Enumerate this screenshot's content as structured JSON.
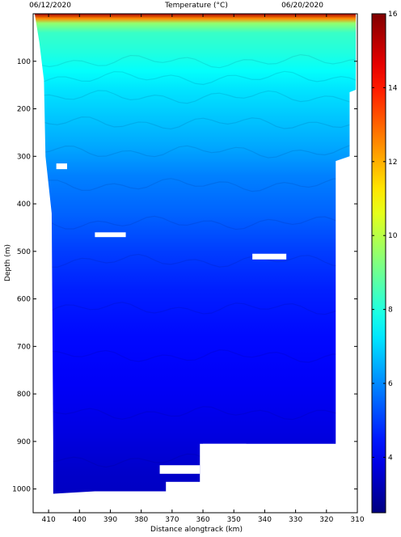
{
  "chart_data": {
    "type": "heatmap",
    "title": "Temperature (°C)",
    "top_left_date": "06/12/2020",
    "top_right_date": "06/20/2020",
    "xlabel": "Distance alongtrack (km)",
    "ylabel": "Depth (m)",
    "xlim": [
      415,
      310
    ],
    "ylim": [
      1050,
      0
    ],
    "x_ticks": [
      410,
      400,
      390,
      380,
      370,
      360,
      350,
      340,
      330,
      320,
      310
    ],
    "y_ticks": [
      100,
      200,
      300,
      400,
      500,
      600,
      700,
      800,
      900,
      1000
    ],
    "colorbar": {
      "range": [
        2.5,
        16
      ],
      "ticks": [
        4,
        6,
        8,
        10,
        12,
        14,
        16
      ]
    },
    "profile": [
      {
        "depth": 0,
        "temp": 15.5
      },
      {
        "depth": 10,
        "temp": 12.5
      },
      {
        "depth": 20,
        "temp": 9.5
      },
      {
        "depth": 40,
        "temp": 8.3
      },
      {
        "depth": 80,
        "temp": 8.0
      },
      {
        "depth": 120,
        "temp": 7.6
      },
      {
        "depth": 160,
        "temp": 7.2
      },
      {
        "depth": 220,
        "temp": 6.8
      },
      {
        "depth": 280,
        "temp": 6.4
      },
      {
        "depth": 340,
        "temp": 5.9
      },
      {
        "depth": 420,
        "temp": 5.5
      },
      {
        "depth": 500,
        "temp": 5.0
      },
      {
        "depth": 580,
        "temp": 4.6
      },
      {
        "depth": 680,
        "temp": 4.3
      },
      {
        "depth": 780,
        "temp": 4.1
      },
      {
        "depth": 880,
        "temp": 3.8
      },
      {
        "depth": 960,
        "temp": 3.5
      },
      {
        "depth": 1050,
        "temp": 3.3
      }
    ],
    "data_extent": {
      "left_km": [
        {
          "depth": 0,
          "x": 414.5
        },
        {
          "depth": 60,
          "x": 413
        },
        {
          "depth": 140,
          "x": 411.5
        },
        {
          "depth": 300,
          "x": 411
        },
        {
          "depth": 420,
          "x": 409
        },
        {
          "depth": 900,
          "x": 408.5
        },
        {
          "depth": 1010,
          "x": 408.5
        }
      ],
      "right_km": [
        {
          "depth": 0,
          "x": 310.5
        },
        {
          "depth": 160,
          "x": 310.5
        },
        {
          "depth": 165,
          "x": 312.5
        },
        {
          "depth": 300,
          "x": 312.5
        },
        {
          "depth": 310,
          "x": 317
        },
        {
          "depth": 905,
          "x": 317
        }
      ],
      "bottom_depth": [
        {
          "x": 408.5,
          "depth": 1010
        },
        {
          "x": 395,
          "depth": 1005
        },
        {
          "x": 380,
          "depth": 1005
        },
        {
          "x": 361,
          "depth": 1005
        },
        {
          "x": 361,
          "depth": 905
        },
        {
          "x": 345,
          "depth": 905
        },
        {
          "x": 335,
          "depth": 905
        },
        {
          "x": 317,
          "depth": 905
        }
      ]
    }
  }
}
